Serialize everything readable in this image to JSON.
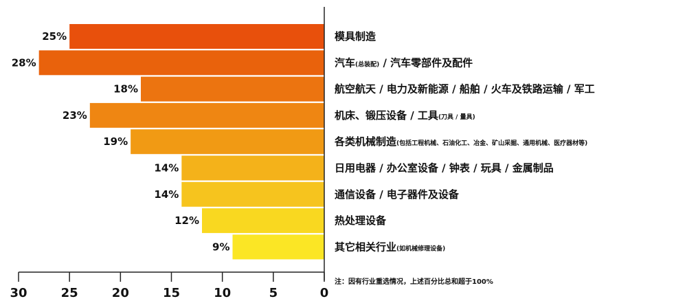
{
  "chart_data": {
    "type": "bar",
    "orientation": "horizontal",
    "direction": "right-to-left",
    "categories": [
      {
        "main": "模具制造",
        "sub": ""
      },
      {
        "main": "汽车",
        "sub": "(总装配)",
        "tail": "/ 汽车零部件及配件"
      },
      {
        "main": "航空航天 / 电力及新能源 / 船舶 / 火车及铁路运输 / 军工",
        "sub": ""
      },
      {
        "main": "机床、锻压设备 / 工具",
        "sub": "(刀具 / 量具)"
      },
      {
        "main": "各类机械制造",
        "sub": "(包括工程机械、石油化工、冶金、矿山采掘、通用机械、医疗器材等)"
      },
      {
        "main": "日用电器 / 办公室设备 / 钟表 / 玩具 / 金属制品",
        "sub": ""
      },
      {
        "main": "通信设备 / 电子器件及设备",
        "sub": ""
      },
      {
        "main": "热处理设备",
        "sub": ""
      },
      {
        "main": "其它相关行业",
        "sub": "(如机械修理设备)"
      }
    ],
    "values": [
      25,
      28,
      18,
      23,
      19,
      14,
      14,
      12,
      9
    ],
    "value_labels": [
      "25%",
      "28%",
      "18%",
      "23%",
      "19%",
      "14%",
      "14%",
      "12%",
      "9%"
    ],
    "colors": [
      "#e8500c",
      "#e9620c",
      "#ec7410",
      "#ef8612",
      "#f19a14",
      "#f4b21a",
      "#f6c41e",
      "#f9d820",
      "#fbe625"
    ],
    "xlim": [
      30,
      0
    ],
    "ticks": [
      30,
      25,
      20,
      15,
      10,
      5,
      0
    ],
    "note": "注：因有行业重选情况，上述百分比总和超于100%"
  }
}
